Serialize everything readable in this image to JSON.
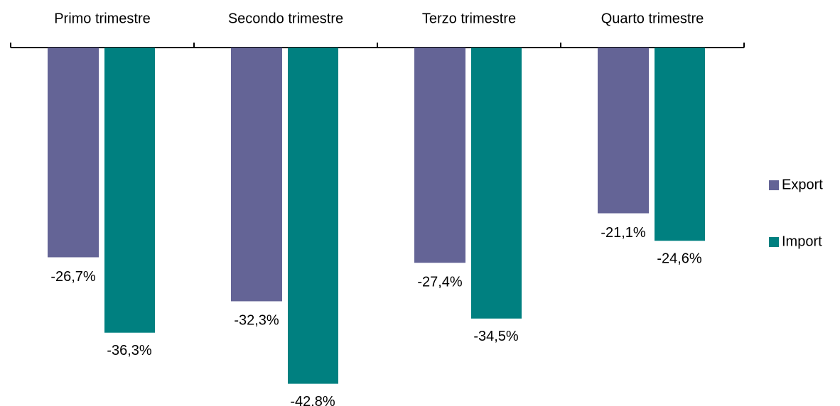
{
  "chart_data": {
    "type": "bar",
    "categories": [
      "Primo trimestre",
      "Secondo trimestre",
      "Terzo trimestre",
      "Quarto trimestre"
    ],
    "series": [
      {
        "name": "Export",
        "color": "#646496",
        "values": [
          -26.7,
          -32.3,
          -27.4,
          -21.1
        ],
        "value_labels": [
          "-26,7%",
          "-32,3%",
          "-27,4%",
          "-21,1%"
        ]
      },
      {
        "name": "Import",
        "color": "#008080",
        "values": [
          -36.3,
          -42.8,
          -34.5,
          -24.6
        ],
        "value_labels": [
          "-36,3%",
          "-42,8%",
          "-34,5%",
          "-24,6%"
        ]
      }
    ],
    "ylim": [
      -45,
      0
    ],
    "legend": "right"
  }
}
